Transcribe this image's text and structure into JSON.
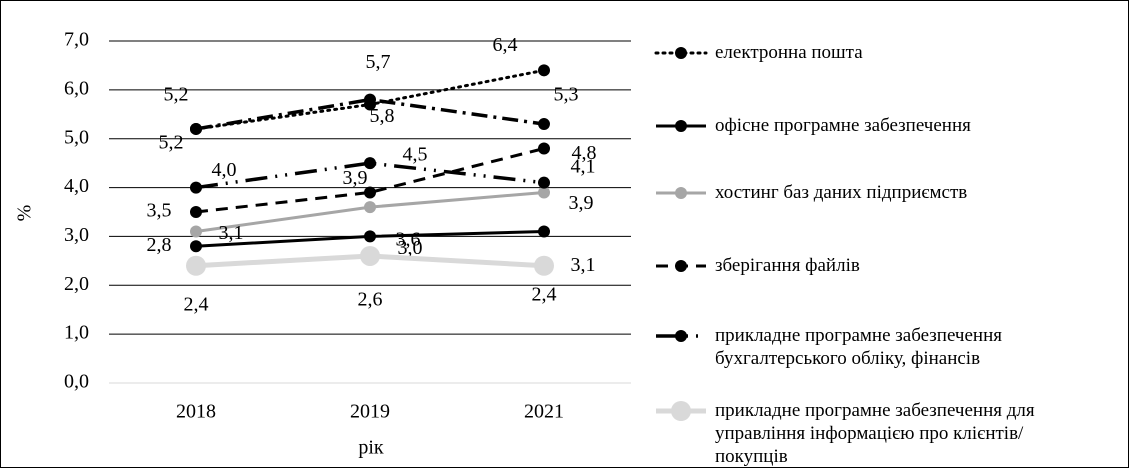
{
  "chart_data": {
    "type": "line",
    "y_label": "%",
    "x_label": "рік",
    "categories": [
      "2018",
      "2019",
      "2021"
    ],
    "ylim": [
      0,
      7
    ],
    "yticks": [
      {
        "value": 0,
        "label": "0,0"
      },
      {
        "value": 1,
        "label": "1,0"
      },
      {
        "value": 2,
        "label": "2,0"
      },
      {
        "value": 3,
        "label": "3,0"
      },
      {
        "value": 4,
        "label": "4,0"
      },
      {
        "value": 5,
        "label": "5,0"
      },
      {
        "value": 6,
        "label": "6,0"
      },
      {
        "value": 7,
        "label": "7,0"
      }
    ],
    "grid": true,
    "series": [
      {
        "name": "електронна пошта",
        "color": "#000000",
        "values": [
          5.2,
          5.7,
          6.4
        ],
        "value_labels": [
          "5,2",
          "5,7",
          "6,4"
        ]
      },
      {
        "name": "офісне програмне забезпечення",
        "color": "#000000",
        "values": [
          2.8,
          3.0,
          3.1
        ],
        "value_labels": [
          "2,8",
          "3,0",
          "3,1"
        ]
      },
      {
        "name": "хостинг баз даних підприємств",
        "color": "#a6a6a6",
        "values": [
          3.1,
          3.6,
          3.9
        ],
        "value_labels": [
          "3,1",
          "3,6",
          "3,9"
        ]
      },
      {
        "name": "зберігання файлів",
        "color": "#000000",
        "values": [
          3.5,
          3.9,
          4.8
        ],
        "value_labels": [
          "3,5",
          "3,9",
          "4,8"
        ]
      },
      {
        "name": "прикладне програмне забезпечення бухгалтерського обліку, фінансів",
        "color": "#000000",
        "values": [
          4.0,
          4.5,
          4.1
        ],
        "value_labels": [
          "4,0",
          "4,5",
          "4,1"
        ]
      },
      {
        "name": "прикладне програмне забезпечення для управління інформацією про клієнтів/покупців",
        "color": "#d9d9d9",
        "values": [
          2.4,
          2.6,
          2.4
        ],
        "value_labels": [
          "2,4",
          "2,6",
          "2,4"
        ]
      },
      {
        "color": "#000000",
        "values": [
          5.2,
          5.8,
          5.3
        ],
        "value_labels": [
          "5,2",
          "5,8",
          "5,3"
        ]
      }
    ]
  }
}
